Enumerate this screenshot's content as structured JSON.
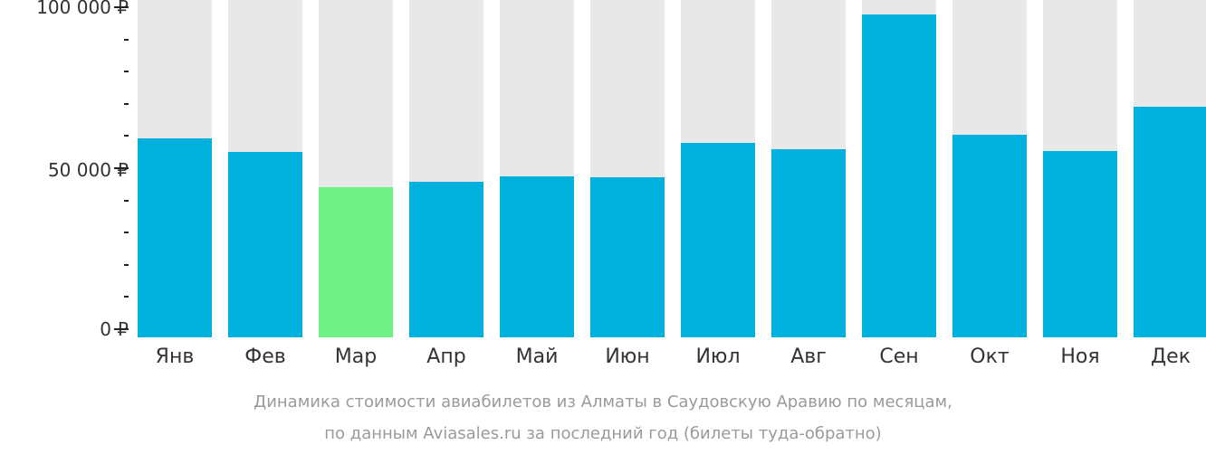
{
  "chart_data": {
    "type": "bar",
    "title": "Динамика стоимости авиабилетов из Алматы в Саудовскую Аравию по месяцам, по данным Aviasales.ru за последний год (билеты туда-обратно)",
    "xlabel": "",
    "ylabel": "",
    "categories": [
      "Янв",
      "Фев",
      "Мар",
      "Апр",
      "Май",
      "Июн",
      "Июл",
      "Авг",
      "Сен",
      "Окт",
      "Ноя",
      "Дек"
    ],
    "values": [
      59300,
      55000,
      44000,
      45800,
      47500,
      47200,
      57900,
      55900,
      97800,
      60400,
      55300,
      69100
    ],
    "ylim": [
      0,
      100000
    ],
    "yticks": [
      0,
      50000,
      100000
    ],
    "ytick_labels": [
      "0 ₽",
      "50 000 ₽",
      "100 000 ₽"
    ],
    "minor_ticks_between": 4,
    "grid": false,
    "legend": null,
    "highlight_index": 2,
    "colors": {
      "bar": "#00b1dd",
      "highlight": "#6ef087",
      "track": "#e8e8e8"
    }
  },
  "axis": {
    "y_labels": [
      "100 000 ₽",
      "50 000 ₽",
      "0 ₽"
    ]
  },
  "caption": {
    "line1": "Динамика стоимости авиабилетов из Алматы в Саудовскую Аравию по месяцам,",
    "line2": "по данным Aviasales.ru за последний год (билеты туда-обратно)"
  }
}
